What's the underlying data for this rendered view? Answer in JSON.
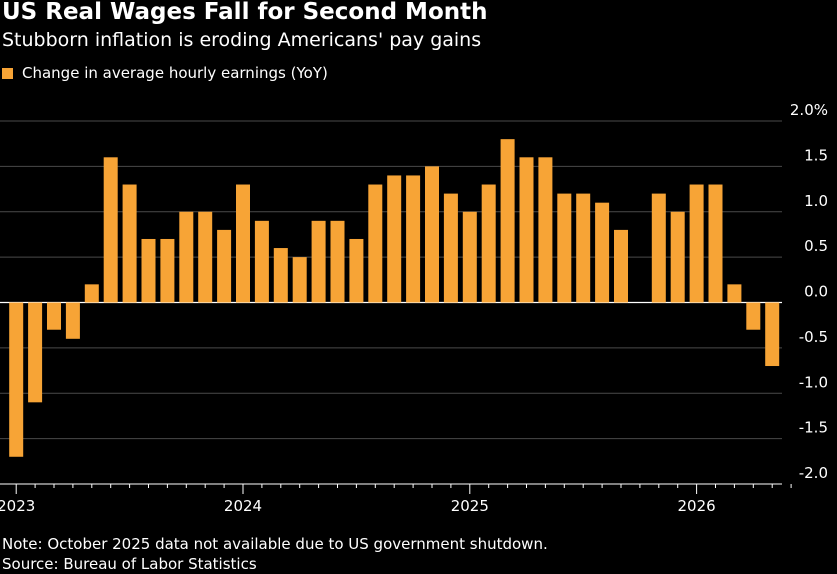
{
  "header": {
    "title": "US Real Wages Fall for Second Month",
    "subtitle": "Stubborn inflation is eroding Americans' pay gains"
  },
  "footer": {
    "note": "Note: October 2025 data not available due to US government shutdown.",
    "source": "Source: Bureau of Labor Statistics"
  },
  "colors": {
    "bar": "#f7a436",
    "background": "#000000",
    "grid": "#4a4a4a",
    "text": "#ffffff"
  },
  "chart_data": {
    "type": "bar",
    "title": "US Real Wages Fall for Second Month",
    "subtitle": "Stubborn inflation is eroding Americans' pay gains",
    "xlabel": "",
    "ylabel": "",
    "ylim": [
      -2.0,
      2.0
    ],
    "yticks": [
      {
        "value": 2.0,
        "label": "2.0%"
      },
      {
        "value": 1.5,
        "label": "1.5"
      },
      {
        "value": 1.0,
        "label": "1.0"
      },
      {
        "value": 0.5,
        "label": "0.5"
      },
      {
        "value": 0.0,
        "label": "0.0"
      },
      {
        "value": -0.5,
        "label": "-0.5"
      },
      {
        "value": -1.0,
        "label": "-1.0"
      },
      {
        "value": -1.5,
        "label": "-1.5"
      },
      {
        "value": -2.0,
        "label": "-2.0"
      }
    ],
    "xticks": [
      {
        "label": "2023",
        "index": 0
      },
      {
        "label": "2024",
        "index": 12
      },
      {
        "label": "2025",
        "index": 24
      },
      {
        "label": "2026",
        "index": 36
      }
    ],
    "grid": true,
    "legend_position": "top-left",
    "series": [
      {
        "name": "Change in average hourly earnings (YoY)",
        "color": "#f7a436",
        "categories": [
          "2023-01",
          "2023-02",
          "2023-03",
          "2023-04",
          "2023-05",
          "2023-06",
          "2023-07",
          "2023-08",
          "2023-09",
          "2023-10",
          "2023-11",
          "2023-12",
          "2024-01",
          "2024-02",
          "2024-03",
          "2024-04",
          "2024-05",
          "2024-06",
          "2024-07",
          "2024-08",
          "2024-09",
          "2024-10",
          "2024-11",
          "2024-12",
          "2025-01",
          "2025-02",
          "2025-03",
          "2025-04",
          "2025-05",
          "2025-06",
          "2025-07",
          "2025-08",
          "2025-09",
          "2025-10",
          "2025-11",
          "2025-12",
          "2026-01",
          "2026-02",
          "2026-03",
          "2026-04",
          "2026-05"
        ],
        "values": [
          -1.7,
          -1.1,
          -0.3,
          -0.4,
          0.2,
          1.6,
          1.3,
          0.7,
          0.7,
          1.0,
          1.0,
          0.8,
          1.3,
          0.9,
          0.6,
          0.5,
          0.9,
          0.9,
          0.7,
          1.3,
          1.4,
          1.4,
          1.5,
          1.2,
          1.0,
          1.3,
          1.8,
          1.6,
          1.6,
          1.2,
          1.2,
          1.1,
          0.8,
          null,
          1.2,
          1.0,
          1.3,
          1.3,
          0.2,
          -0.3,
          -0.7
        ]
      }
    ]
  }
}
